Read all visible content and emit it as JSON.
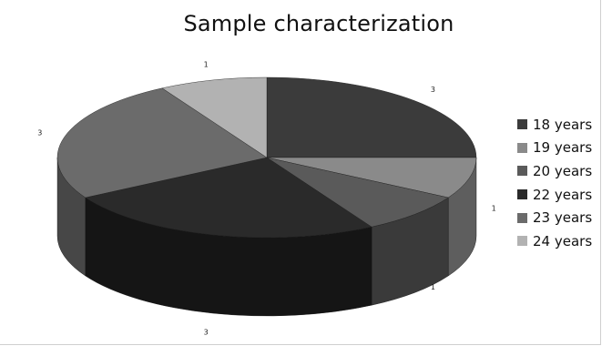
{
  "chart_data": {
    "type": "pie",
    "title": "Sample characterization",
    "categories": [
      "18 years",
      "19 years",
      "20 years",
      "22 years",
      "23 years",
      "24 years"
    ],
    "values": [
      3,
      1,
      1,
      3,
      3,
      1
    ],
    "data_labels": [
      "3",
      "1",
      "1",
      "3",
      "3",
      "1"
    ],
    "colors": [
      "#3b3b3b",
      "#8a8a8a",
      "#5a5a5a",
      "#2a2a2a",
      "#6b6b6b",
      "#b2b2b2"
    ],
    "side_colors": [
      "#222222",
      "#5e5e5e",
      "#3a3a3a",
      "#151515",
      "#474747",
      "#808080"
    ],
    "legend_position": "right",
    "style": "3d-exploded-none"
  }
}
